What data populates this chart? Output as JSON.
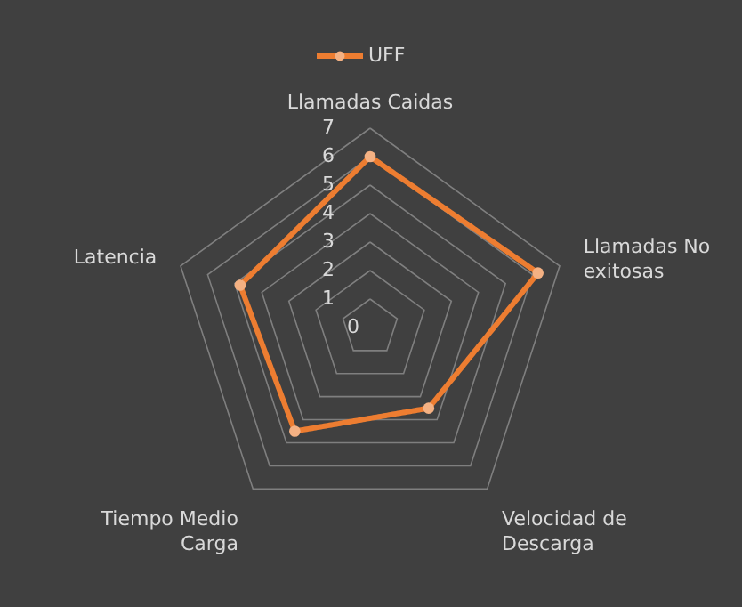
{
  "chart_data": {
    "type": "radar",
    "categories": [
      "Llamadas Caidas",
      "Llamadas No exitosas",
      "Velocidad de Descarga",
      "Tiempo Medio Carga",
      "Latencia"
    ],
    "series": [
      {
        "name": "UFF",
        "color": "#ed7d31",
        "values": [
          6.0,
          6.2,
          3.5,
          4.5,
          4.8
        ]
      }
    ],
    "ylim": [
      0,
      7
    ],
    "yticks": [
      0,
      1,
      2,
      3,
      4,
      5,
      6,
      7
    ],
    "grid": true,
    "legend": "top",
    "marker": "circle",
    "line_style": "solid"
  }
}
